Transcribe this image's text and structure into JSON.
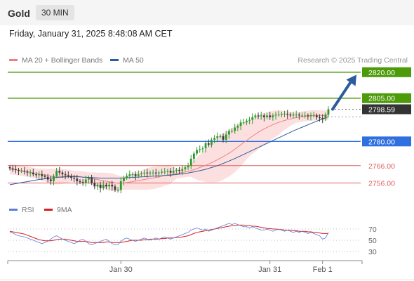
{
  "header": {
    "symbol": "Gold",
    "timeframe": "30 MIN",
    "datetime": "Friday, January 31, 2025 8:48:08 AM CET",
    "copyright": "Research © 2025 Trading Central"
  },
  "legend": {
    "ma20": {
      "label": "MA 20 + Bollinger Bands",
      "color": "#f08080"
    },
    "ma50": {
      "label": "MA 50",
      "color": "#2c5b9e"
    }
  },
  "rsi_legend": {
    "rsi": {
      "label": "RSI",
      "color": "#5b7fd6"
    },
    "ma9": {
      "label": "9MA",
      "color": "#d62020"
    }
  },
  "colors": {
    "up": "#2e9a2e",
    "down": "#3a3a3a",
    "resistance": "#4d9a0a",
    "pivot": "#2f6fe0",
    "support": "#e06060",
    "last_price": "#333333",
    "arrow": "#2c5b9e"
  },
  "chart_data": [
    {
      "type": "candlestick",
      "ylim": [
        2744,
        2826
      ],
      "x_ticks": [
        "Jan 30",
        "Jan 31",
        "Feb 1"
      ],
      "levels": [
        {
          "value": 2820.0,
          "label": "2820.00",
          "kind": "resistance"
        },
        {
          "value": 2805.0,
          "label": "2805.00",
          "kind": "resistance"
        },
        {
          "value": 2798.59,
          "label": "2798.59",
          "kind": "last"
        },
        {
          "value": 2780.0,
          "label": "2780.00",
          "kind": "pivot"
        },
        {
          "value": 2766.0,
          "label": "2766.00",
          "kind": "support"
        },
        {
          "value": 2756.0,
          "label": "2756.00",
          "kind": "support"
        }
      ],
      "closes": [
        2764.5,
        2764,
        2763.5,
        2763,
        2763,
        2762.5,
        2762,
        2762,
        2761,
        2760.5,
        2761,
        2760,
        2759.5,
        2758,
        2757,
        2760,
        2763,
        2762,
        2761,
        2760.5,
        2760,
        2759,
        2758.5,
        2757,
        2756.5,
        2756,
        2758,
        2759,
        2756,
        2754,
        2755,
        2753,
        2755,
        2754,
        2755,
        2754,
        2752,
        2752,
        2757,
        2759,
        2760,
        2761,
        2761,
        2760,
        2761,
        2761.5,
        2762,
        2761.5,
        2762,
        2762,
        2761.5,
        2762,
        2762.5,
        2762.5,
        2763,
        2762,
        2763,
        2763.5,
        2763,
        2764,
        2765,
        2766,
        2770,
        2773,
        2775,
        2775.5,
        2776,
        2779,
        2778,
        2781,
        2782,
        2783,
        2783,
        2781,
        2784,
        2786,
        2786,
        2788,
        2789,
        2791,
        2791,
        2792,
        2792.5,
        2794,
        2795,
        2794.5,
        2795,
        2794,
        2795,
        2794,
        2795,
        2795.5,
        2795.5,
        2796,
        2796,
        2795.5,
        2795,
        2795.5,
        2795.5,
        2795,
        2795,
        2795,
        2794.5,
        2795,
        2795,
        2794,
        2793.5,
        2793,
        2795.5,
        2798.59
      ],
      "ma20": [
        2764,
        2763.8,
        2763.6,
        2763.3,
        2763.1,
        2762.8,
        2762.5,
        2762.2,
        2761.8,
        2761.4,
        2761.1,
        2760.8,
        2760.5,
        2760.2,
        2759.9,
        2759.7,
        2759.7,
        2759.7,
        2759.8,
        2759.9,
        2760,
        2760,
        2759.9,
        2759.8,
        2759.6,
        2759.3,
        2759.1,
        2758.9,
        2758.6,
        2758.3,
        2758,
        2757.6,
        2757.3,
        2757,
        2756.7,
        2756.4,
        2756.1,
        2755.8,
        2755.9,
        2756,
        2756.2,
        2756.5,
        2756.8,
        2757.1,
        2757.4,
        2757.7,
        2758,
        2758.3,
        2758.6,
        2758.9,
        2759.2,
        2759.5,
        2759.9,
        2760.3,
        2760.6,
        2760.9,
        2761.2,
        2761.5,
        2761.8,
        2762.1,
        2762.3,
        2762.6,
        2763.1,
        2763.7,
        2764.3,
        2764.9,
        2765.5,
        2766.2,
        2766.9,
        2767.7,
        2768.5,
        2769.4,
        2770.3,
        2771.2,
        2772.2,
        2773.2,
        2774.3,
        2775.5,
        2776.7,
        2778,
        2779.3,
        2780.5,
        2781.8,
        2783,
        2784.2,
        2785.3,
        2786.3,
        2787.2,
        2788.1,
        2788.9,
        2789.7,
        2790.4,
        2791,
        2791.6,
        2792.1,
        2792.6,
        2793,
        2793.4,
        2793.8,
        2794.1,
        2794.4,
        2794.6,
        2794.8,
        2795,
        2795.1,
        2795.1,
        2795.1,
        2795,
        2795.1,
        2795.3
      ],
      "ma50": [
        2755,
        2755.3,
        2755.6,
        2755.9,
        2756.2,
        2756.5,
        2756.8,
        2757.1,
        2757.4,
        2757.7,
        2758,
        2758.2,
        2758.4,
        2758.6,
        2758.8,
        2759,
        2759.2,
        2759.3,
        2759.4,
        2759.5,
        2759.6,
        2759.6,
        2759.6,
        2759.6,
        2759.5,
        2759.4,
        2759.3,
        2759.2,
        2759.1,
        2759,
        2758.9,
        2758.8,
        2758.8,
        2758.8,
        2758.8,
        2758.8,
        2758.8,
        2758.8,
        2758.8,
        2758.9,
        2759,
        2759.1,
        2759.2,
        2759.3,
        2759.4,
        2759.5,
        2759.6,
        2759.7,
        2759.8,
        2759.9,
        2760,
        2760.1,
        2760.2,
        2760.3,
        2760.4,
        2760.5,
        2760.7,
        2760.9,
        2761.1,
        2761.3,
        2761.5,
        2761.8,
        2762.1,
        2762.4,
        2762.7,
        2763.1,
        2763.5,
        2763.9,
        2764.4,
        2764.9,
        2765.4,
        2766,
        2766.6,
        2767.3,
        2768,
        2768.7,
        2769.4,
        2770.1,
        2770.9,
        2771.7,
        2772.5,
        2773.3,
        2774.1,
        2774.9,
        2775.7,
        2776.5,
        2777.3,
        2778.1,
        2778.9,
        2779.7,
        2780.5,
        2781.3,
        2782.1,
        2782.9,
        2783.7,
        2784.5,
        2785.3,
        2786.1,
        2786.8,
        2787.5,
        2788.2,
        2788.9,
        2789.6,
        2790.3,
        2791,
        2791.7,
        2792.4,
        2793,
        2793.6,
        2794.2
      ],
      "forecast_arrow": {
        "from": 2798.59,
        "to": 2818.5
      }
    },
    {
      "type": "line",
      "ylim": [
        20,
        80
      ],
      "y_ticks": [
        70,
        50,
        30
      ],
      "series": [
        {
          "name": "RSI",
          "values": [
            64,
            63,
            60,
            58,
            57,
            56,
            54,
            52,
            50,
            48,
            46,
            44,
            46,
            48,
            52,
            56,
            58,
            55,
            52,
            50,
            48,
            46,
            44,
            46,
            50,
            52,
            48,
            44,
            42,
            44,
            46,
            48,
            50,
            52,
            48,
            44,
            42,
            42,
            48,
            52,
            54,
            52,
            50,
            48,
            50,
            52,
            54,
            52,
            50,
            52,
            54,
            52,
            54,
            56,
            54,
            52,
            54,
            56,
            58,
            60,
            62,
            64,
            68,
            70,
            72,
            70,
            68,
            70,
            66,
            68,
            70,
            72,
            74,
            76,
            78,
            80,
            78,
            80,
            78,
            76,
            74,
            74,
            72,
            74,
            72,
            70,
            68,
            68,
            70,
            68,
            66,
            68,
            70,
            68,
            66,
            68,
            66,
            64,
            66,
            64,
            66,
            64,
            62,
            64,
            62,
            60,
            58,
            52,
            54,
            64
          ]
        },
        {
          "name": "9MA",
          "values": [
            66,
            65,
            64,
            63,
            62,
            61,
            59,
            57,
            55,
            53,
            51,
            50,
            49,
            49,
            49,
            50,
            51,
            52,
            52,
            52,
            51,
            50,
            49,
            48,
            48,
            48,
            48,
            47,
            46,
            46,
            46,
            46,
            46,
            47,
            47,
            46,
            46,
            46,
            46,
            47,
            48,
            49,
            50,
            50,
            50,
            50,
            51,
            51,
            52,
            52,
            52,
            52,
            53,
            53,
            54,
            54,
            54,
            55,
            55,
            56,
            57,
            58,
            60,
            62,
            64,
            65,
            66,
            67,
            68,
            69,
            70,
            71,
            72,
            73,
            74,
            75,
            76,
            76,
            77,
            77,
            77,
            76,
            76,
            75,
            75,
            74,
            73,
            72,
            71,
            71,
            70,
            70,
            69,
            69,
            68,
            68,
            68,
            67,
            67,
            66,
            66,
            66,
            65,
            65,
            64,
            64,
            63,
            62,
            62,
            62
          ]
        }
      ]
    }
  ]
}
